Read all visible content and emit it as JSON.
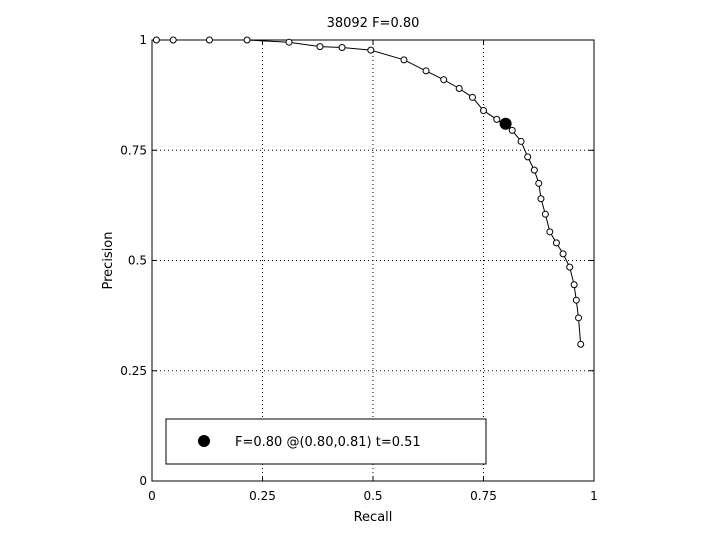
{
  "chart_data": {
    "type": "line",
    "title": "38092 F=0.80",
    "xlabel": "Recall",
    "ylabel": "Precision",
    "xlim": [
      0,
      1
    ],
    "ylim": [
      0,
      1
    ],
    "grid": true,
    "x_ticks": [
      "0",
      "0.25",
      "0.5",
      "0.75",
      "1"
    ],
    "y_ticks": [
      "0",
      "0.25",
      "0.5",
      "0.75",
      "1"
    ],
    "series": [
      {
        "x": [
          0.01,
          0.048,
          0.13,
          0.215,
          0.31,
          0.38,
          0.43,
          0.495,
          0.57,
          0.62,
          0.66,
          0.695,
          0.725,
          0.75,
          0.78,
          0.815,
          0.835,
          0.85,
          0.865,
          0.875,
          0.88,
          0.89,
          0.9,
          0.915,
          0.93,
          0.945,
          0.955,
          0.96,
          0.965,
          0.97
        ],
        "y": [
          1.0,
          1.0,
          1.0,
          1.0,
          0.995,
          0.985,
          0.983,
          0.977,
          0.955,
          0.93,
          0.91,
          0.89,
          0.87,
          0.84,
          0.82,
          0.795,
          0.77,
          0.735,
          0.705,
          0.675,
          0.64,
          0.605,
          0.565,
          0.54,
          0.515,
          0.485,
          0.445,
          0.41,
          0.37,
          0.31
        ]
      }
    ],
    "highlight_point": {
      "x": 0.8,
      "y": 0.81
    },
    "legend": {
      "placement": "bottom",
      "text": "F=0.80 @(0.80,0.81) t=0.51"
    }
  }
}
